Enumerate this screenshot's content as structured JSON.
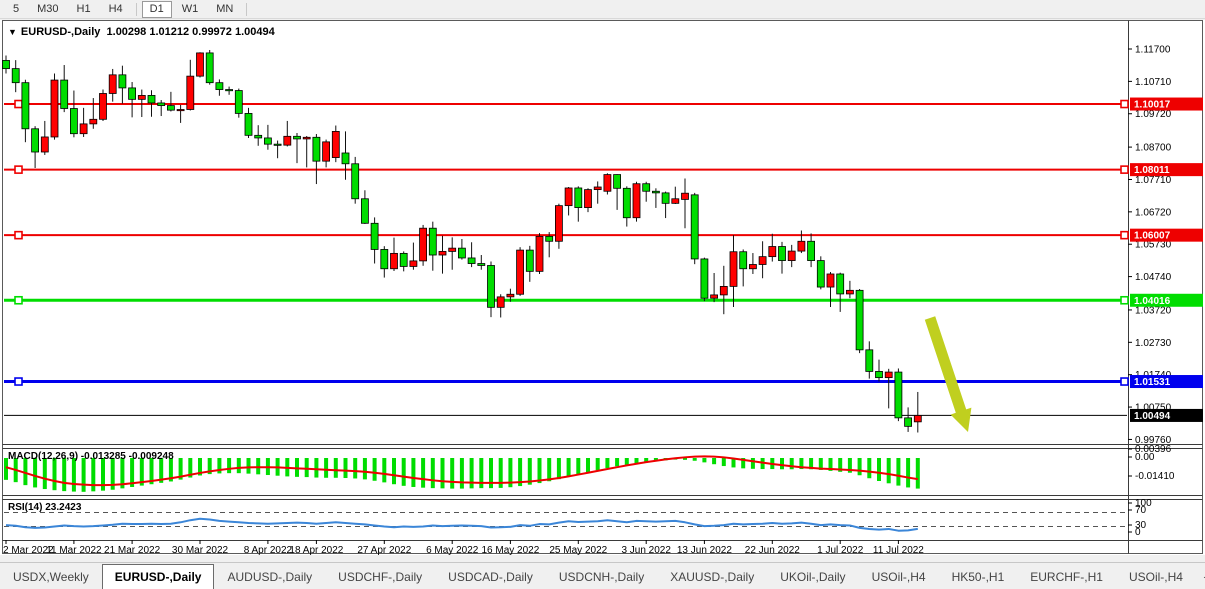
{
  "toolbar": {
    "timeframes": [
      "5",
      "M30",
      "H1",
      "H4",
      "D1",
      "W1",
      "MN"
    ],
    "active_timeframe": "D1"
  },
  "chart": {
    "title_symbol": "EURUSD-,Daily",
    "title_ohlc": "1.00298 1.01212 0.99972 1.00494",
    "dropdown_icon": "▼"
  },
  "chart_data": {
    "type": "candlestick",
    "symbol": "EURUSD-,Daily",
    "note_colors": "platform draws bullish candles red and bearish candles lime",
    "up_color": "#ff0000",
    "down_color": "#00dd00",
    "wick_color": "#111111",
    "y_ticks": [
      "1.11700",
      "1.10710",
      "1.09720",
      "1.08700",
      "1.07710",
      "1.06720",
      "1.05730",
      "1.04740",
      "1.03720",
      "1.02730",
      "1.01740",
      "1.00750",
      "0.99760"
    ],
    "x_labels": [
      {
        "index": 0,
        "label": "2 Mar 2022"
      },
      {
        "index": 7,
        "label": "11 Mar 2022"
      },
      {
        "index": 13,
        "label": "21 Mar 2022"
      },
      {
        "index": 20,
        "label": "30 Mar 2022"
      },
      {
        "index": 27,
        "label": "8 Apr 2022"
      },
      {
        "index": 32,
        "label": "18 Apr 2022"
      },
      {
        "index": 39,
        "label": "27 Apr 2022"
      },
      {
        "index": 46,
        "label": "6 May 2022"
      },
      {
        "index": 52,
        "label": "16 May 2022"
      },
      {
        "index": 59,
        "label": "25 May 2022"
      },
      {
        "index": 66,
        "label": "3 Jun 2022"
      },
      {
        "index": 72,
        "label": "13 Jun 2022"
      },
      {
        "index": 79,
        "label": "22 Jun 2022"
      },
      {
        "index": 86,
        "label": "1 Jul 2022"
      },
      {
        "index": 92,
        "label": "11 Jul 2022"
      }
    ],
    "candles": [
      [
        1.1135,
        1.115,
        1.1095,
        1.111
      ],
      [
        1.111,
        1.1136,
        1.1038,
        1.1067
      ],
      [
        1.1067,
        1.1076,
        1.0885,
        1.0926
      ],
      [
        1.0926,
        1.0934,
        1.0806,
        1.0855
      ],
      [
        1.0855,
        1.095,
        1.0846,
        1.0901
      ],
      [
        1.0901,
        1.1095,
        1.0893,
        1.1075
      ],
      [
        1.1075,
        1.1121,
        1.0977,
        1.0988
      ],
      [
        1.0988,
        1.1043,
        1.09,
        1.0911
      ],
      [
        1.0911,
        1.099,
        1.0901,
        1.0941
      ],
      [
        1.0941,
        1.102,
        1.0926,
        1.0955
      ],
      [
        1.0955,
        1.1046,
        1.095,
        1.1034
      ],
      [
        1.1034,
        1.1109,
        1.1009,
        1.1091
      ],
      [
        1.1091,
        1.1119,
        1.1003,
        1.1051
      ],
      [
        1.1051,
        1.1069,
        1.0961,
        1.1016
      ],
      [
        1.1016,
        1.1046,
        1.0962,
        1.1028
      ],
      [
        1.1028,
        1.1044,
        1.0963,
        1.1005
      ],
      [
        1.1005,
        1.1014,
        1.0965,
        1.0997
      ],
      [
        1.0997,
        1.1039,
        1.0979,
        1.0983
      ],
      [
        1.0983,
        1.0999,
        1.0944,
        1.0985
      ],
      [
        1.0985,
        1.1137,
        1.0982,
        1.1087
      ],
      [
        1.1087,
        1.116,
        1.1083,
        1.1158
      ],
      [
        1.1158,
        1.1167,
        1.1061,
        1.1067
      ],
      [
        1.1067,
        1.1077,
        1.1027,
        1.1046
      ],
      [
        1.1046,
        1.1055,
        1.103,
        1.1043
      ],
      [
        1.1043,
        1.1049,
        1.096,
        1.0973
      ],
      [
        1.0973,
        1.099,
        1.0898,
        1.0906
      ],
      [
        1.0906,
        1.0937,
        1.0874,
        1.0898
      ],
      [
        1.0898,
        1.0938,
        1.0862,
        1.0879
      ],
      [
        1.0879,
        1.089,
        1.0836,
        1.0876
      ],
      [
        1.0876,
        1.095,
        1.0872,
        1.0903
      ],
      [
        1.0903,
        1.0913,
        1.0821,
        1.0895
      ],
      [
        1.0895,
        1.0904,
        1.0808,
        1.09
      ],
      [
        1.09,
        1.091,
        1.0757,
        1.0827
      ],
      [
        1.0827,
        1.0893,
        1.0808,
        1.0886
      ],
      [
        1.0838,
        1.0936,
        1.0824,
        1.0918
      ],
      [
        1.0852,
        1.0918,
        1.077,
        1.0819
      ],
      [
        1.0819,
        1.084,
        1.0697,
        1.0712
      ],
      [
        1.0712,
        1.0738,
        1.0635,
        1.0637
      ],
      [
        1.0637,
        1.0655,
        1.0514,
        1.0557
      ],
      [
        1.0557,
        1.0567,
        1.0471,
        1.0498
      ],
      [
        1.0498,
        1.0593,
        1.0491,
        1.0545
      ],
      [
        1.0545,
        1.0551,
        1.049,
        1.0505
      ],
      [
        1.0505,
        1.0578,
        1.0495,
        1.0522
      ],
      [
        1.0522,
        1.0632,
        1.0507,
        1.0622
      ],
      [
        1.0622,
        1.0642,
        1.0492,
        1.054
      ],
      [
        1.054,
        1.0599,
        1.0483,
        1.0551
      ],
      [
        1.0551,
        1.0594,
        1.0495,
        1.0561
      ],
      [
        1.0561,
        1.0589,
        1.0526,
        1.0531
      ],
      [
        1.0531,
        1.0579,
        1.0503,
        1.0514
      ],
      [
        1.0514,
        1.054,
        1.0495,
        1.0508
      ],
      [
        1.0508,
        1.052,
        1.035,
        1.038
      ],
      [
        1.038,
        1.042,
        1.0349,
        1.0412
      ],
      [
        1.0412,
        1.0437,
        1.0397,
        1.042
      ],
      [
        1.042,
        1.0564,
        1.0415,
        1.0555
      ],
      [
        1.0555,
        1.0568,
        1.0458,
        1.049
      ],
      [
        1.049,
        1.0607,
        1.0482,
        1.0597
      ],
      [
        1.0597,
        1.061,
        1.0533,
        1.0582
      ],
      [
        1.0582,
        1.0697,
        1.0559,
        1.0691
      ],
      [
        1.0691,
        1.0748,
        1.0661,
        1.0745
      ],
      [
        1.0745,
        1.075,
        1.0642,
        1.0685
      ],
      [
        1.0685,
        1.0744,
        1.0671,
        1.074
      ],
      [
        1.074,
        1.0765,
        1.0697,
        1.0748
      ],
      [
        1.0735,
        1.079,
        1.0725,
        1.0786
      ],
      [
        1.0786,
        1.0787,
        1.0678,
        1.0744
      ],
      [
        1.0744,
        1.075,
        1.0627,
        1.0654
      ],
      [
        1.0654,
        1.0764,
        1.0642,
        1.0758
      ],
      [
        1.0758,
        1.0764,
        1.0703,
        1.0735
      ],
      [
        1.0735,
        1.0744,
        1.0684,
        1.073
      ],
      [
        1.073,
        1.0734,
        1.0653,
        1.0698
      ],
      [
        1.0698,
        1.0749,
        1.0696,
        1.0712
      ],
      [
        1.071,
        1.0774,
        1.0622,
        1.0729
      ],
      [
        1.0724,
        1.073,
        1.0512,
        1.0528
      ],
      [
        1.0528,
        1.0532,
        1.0399,
        1.0408
      ],
      [
        1.0408,
        1.0485,
        1.0396,
        1.0418
      ],
      [
        1.0418,
        1.0507,
        1.0359,
        1.0444
      ],
      [
        1.0444,
        1.0601,
        1.0381,
        1.055
      ],
      [
        1.055,
        1.0557,
        1.0444,
        1.0498
      ],
      [
        1.0498,
        1.0546,
        1.0482,
        1.0511
      ],
      [
        1.0511,
        1.0582,
        1.0469,
        1.0535
      ],
      [
        1.0535,
        1.0605,
        1.052,
        1.0566
      ],
      [
        1.0566,
        1.058,
        1.0483,
        1.0523
      ],
      [
        1.0523,
        1.0571,
        1.0503,
        1.0552
      ],
      [
        1.0552,
        1.0615,
        1.0546,
        1.0582
      ],
      [
        1.0582,
        1.0606,
        1.0503,
        1.0523
      ],
      [
        1.0523,
        1.0536,
        1.0435,
        1.0442
      ],
      [
        1.0442,
        1.0488,
        1.0381,
        1.0482
      ],
      [
        1.0482,
        1.0486,
        1.0366,
        1.0421
      ],
      [
        1.0421,
        1.0461,
        1.0408,
        1.0432
      ],
      [
        1.0432,
        1.0436,
        1.024,
        1.025
      ],
      [
        1.025,
        1.0276,
        1.0162,
        1.0184
      ],
      [
        1.0184,
        1.022,
        1.0153,
        1.0165
      ],
      [
        1.0165,
        1.0192,
        1.0071,
        1.0182
      ],
      [
        1.0182,
        1.0193,
        1.0032,
        1.0042
      ],
      [
        1.0042,
        1.0074,
        0.9999,
        1.0016
      ],
      [
        1.00298,
        1.01212,
        0.99972,
        1.00494
      ]
    ],
    "hlines": [
      {
        "price": 1.10017,
        "label": "1.10017",
        "color": "#ee0000",
        "width": 2,
        "kind": "resistance"
      },
      {
        "price": 1.08011,
        "label": "1.08011",
        "color": "#ee0000",
        "width": 2,
        "kind": "resistance"
      },
      {
        "price": 1.06007,
        "label": "1.06007",
        "color": "#ee0000",
        "width": 2,
        "kind": "resistance"
      },
      {
        "price": 1.04016,
        "label": "1.04016",
        "color": "#00dd00",
        "width": 3,
        "kind": "support"
      },
      {
        "price": 1.01531,
        "label": "1.01531",
        "color": "#0000ee",
        "width": 3,
        "kind": "support"
      }
    ],
    "current_price": {
      "value": 1.00494,
      "label": "1.00494",
      "color": "#000000"
    },
    "annotation_arrow": {
      "color": "#c0cf1f",
      "direction": "down-right"
    },
    "indicators": {
      "macd": {
        "label": "MACD(12,26,9) -0.013285 -0.009248",
        "ticks": [
          "0.00396",
          "0.00",
          "-0.01410"
        ],
        "hist_color": "#00dd00",
        "signal_color": "#ee0000",
        "histogram": [
          -0.0095,
          -0.0105,
          -0.0118,
          -0.0128,
          -0.0135,
          -0.014,
          -0.0144,
          -0.0146,
          -0.0147,
          -0.0145,
          -0.0142,
          -0.0138,
          -0.0132,
          -0.0126,
          -0.012,
          -0.0114,
          -0.0108,
          -0.0102,
          -0.0094,
          -0.0085,
          -0.0076,
          -0.007,
          -0.0067,
          -0.0066,
          -0.0066,
          -0.0068,
          -0.0071,
          -0.0074,
          -0.0077,
          -0.008,
          -0.0082,
          -0.0083,
          -0.0085,
          -0.0086,
          -0.0086,
          -0.0087,
          -0.0089,
          -0.0093,
          -0.0099,
          -0.0106,
          -0.0114,
          -0.0121,
          -0.0126,
          -0.0129,
          -0.0131,
          -0.0132,
          -0.0133,
          -0.0133,
          -0.0132,
          -0.0131,
          -0.0131,
          -0.013,
          -0.0127,
          -0.0122,
          -0.0116,
          -0.0109,
          -0.0101,
          -0.0092,
          -0.0082,
          -0.0072,
          -0.0062,
          -0.0053,
          -0.0044,
          -0.0036,
          -0.003,
          -0.0024,
          -0.0019,
          -0.0014,
          -0.001,
          -0.0007,
          -0.0008,
          -0.0012,
          -0.0019,
          -0.0027,
          -0.0035,
          -0.0041,
          -0.0045,
          -0.0047,
          -0.0048,
          -0.0048,
          -0.0049,
          -0.0049,
          -0.0048,
          -0.0049,
          -0.0052,
          -0.0056,
          -0.006,
          -0.0064,
          -0.0075,
          -0.0088,
          -0.01,
          -0.011,
          -0.012,
          -0.0128,
          -0.0133
        ],
        "signal": [
          -0.004,
          -0.0052,
          -0.0065,
          -0.0078,
          -0.009,
          -0.01,
          -0.0108,
          -0.0113,
          -0.0116,
          -0.0118,
          -0.0118,
          -0.0117,
          -0.0114,
          -0.011,
          -0.0105,
          -0.01,
          -0.0094,
          -0.0088,
          -0.0081,
          -0.0073,
          -0.0065,
          -0.0058,
          -0.0052,
          -0.0047,
          -0.0043,
          -0.0041,
          -0.004,
          -0.004,
          -0.0041,
          -0.0043,
          -0.0045,
          -0.0047,
          -0.0049,
          -0.0051,
          -0.0053,
          -0.0055,
          -0.0057,
          -0.006,
          -0.0064,
          -0.0069,
          -0.0075,
          -0.0081,
          -0.0087,
          -0.0092,
          -0.0097,
          -0.0101,
          -0.0104,
          -0.0106,
          -0.0107,
          -0.0108,
          -0.0108,
          -0.0108,
          -0.0107,
          -0.0105,
          -0.0102,
          -0.0098,
          -0.0093,
          -0.0087,
          -0.008,
          -0.0072,
          -0.0064,
          -0.0056,
          -0.0048,
          -0.004,
          -0.0032,
          -0.0025,
          -0.0018,
          -0.0012,
          -0.0006,
          -0.0001,
          0.0003,
          0.0006,
          0.0007,
          0.0006,
          0.0003,
          -0.0002,
          -0.0008,
          -0.0014,
          -0.002,
          -0.0026,
          -0.0031,
          -0.0036,
          -0.004,
          -0.0043,
          -0.0046,
          -0.0048,
          -0.005,
          -0.0052,
          -0.0055,
          -0.0059,
          -0.0064,
          -0.007,
          -0.0077,
          -0.0085,
          -0.0092
        ]
      },
      "rsi": {
        "label": "RSI(14) 23.2423",
        "ticks": [
          "100",
          "70",
          "30",
          "0"
        ],
        "levels": [
          70,
          30
        ],
        "line_color": "#3b86d8",
        "values": [
          34,
          32,
          28,
          26,
          27,
          30,
          33,
          31,
          30,
          31,
          33,
          35,
          38,
          37,
          37,
          38,
          37,
          38,
          42,
          48,
          52,
          50,
          46,
          44,
          42,
          40,
          39,
          38,
          39,
          40,
          41,
          40,
          38,
          40,
          42,
          40,
          38,
          36,
          33,
          30,
          28,
          30,
          29,
          30,
          33,
          31,
          32,
          33,
          32,
          31,
          27,
          28,
          29,
          34,
          32,
          37,
          36,
          41,
          45,
          43,
          44,
          45,
          48,
          45,
          42,
          46,
          45,
          44,
          45,
          46,
          42,
          36,
          31,
          32,
          34,
          38,
          36,
          37,
          38,
          40,
          38,
          39,
          41,
          38,
          34,
          36,
          34,
          33,
          26,
          23,
          21,
          23,
          18,
          19,
          23.2
        ]
      }
    }
  },
  "tabbar": {
    "tabs": [
      "USDX,Weekly",
      "EURUSD-,Daily",
      "AUDUSD-,Daily",
      "USDCHF-,Daily",
      "USDCAD-,Daily",
      "USDCNH-,Daily",
      "XAUUSD-,Daily",
      "UKOil-,Daily",
      "USOil-,H4",
      "HK50-,H1",
      "EURCHF-,H1",
      "USOil-,H4"
    ],
    "active_tab_index": 1,
    "scroll_left_icon": "◄",
    "scroll_right_icon": "►"
  }
}
